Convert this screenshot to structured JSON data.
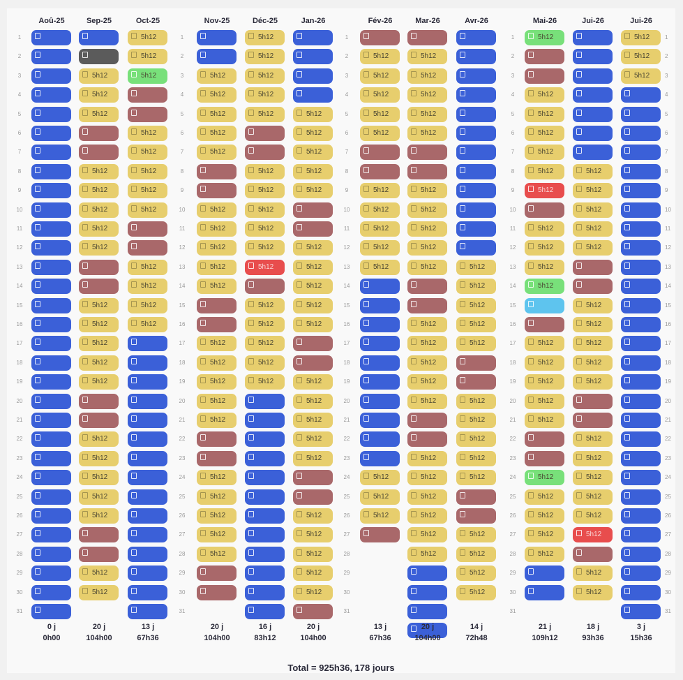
{
  "shift_label": "5h12",
  "total_text": "Total = 925h36, 178 jours",
  "colors": {
    "shift": "#e7ce6d",
    "blue": "#3b60d8",
    "brown": "#a9686a",
    "green": "#78e07a",
    "red": "#e84d4d",
    "dark": "#5b5b5b",
    "cyan": "#5ec4ee"
  },
  "months": [
    {
      "label": "Aoû-25",
      "days": "0 j",
      "hours": "0h00",
      "cells": "bbbbbbbbbbbbbbbbbbbbbbbbbbbbbbb"
    },
    {
      "label": "Sep-25",
      "days": "20 j",
      "hours": "104h00",
      "cells": "bdyyyrryyyyyrryyyyyrryyyyyrryy"
    },
    {
      "label": "Oct-25",
      "days": "13 j",
      "hours": "67h36",
      "cells": "yygrryyyyyrryyyybbbbbbbbbbbbbbb"
    },
    {
      "label": "Nov-25",
      "days": "20 j",
      "hours": "104h00",
      "cells": "bbyyyyyrryyyyyrryyyyyrryyyyyrr"
    },
    {
      "label": "Déc-25",
      "days": "16 j",
      "hours": "83h12",
      "cells": "yyyyyrryyyyyRryyyyybbbbbbbbbbbb"
    },
    {
      "label": "Jan-26",
      "days": "20 j",
      "hours": "104h00",
      "cells": "bbbbyyyyyrryyyyyrryyyyyrryyyyyr"
    },
    {
      "label": "Fév-26",
      "days": "13 j",
      "hours": "67h36",
      "cells": "ryyyyyrryyyyybbbbbbbbbbyyyr"
    },
    {
      "label": "Mar-26",
      "days": "20 j",
      "hours": "104h00",
      "cells": "ryyyyyrryyyyyrryyyyyrryyyyyybbbb"
    },
    {
      "label": "Avr-26",
      "days": "14 j",
      "hours": "72h48",
      "cells": "bbbbbbbbbbbbyyyyyrryyyyyrryyyy"
    },
    {
      "label": "Mai-26",
      "days": "21 j",
      "hours": "109h12",
      "cells": "grryyyyyRryyygcryyyyyrrgyyyybb"
    },
    {
      "label": "Jui-26",
      "days": "18 j",
      "hours": "93h36",
      "cells": "bbbbbbbyyyyyrryyyyyrryyyyyRryy"
    },
    {
      "label": "Jui-26",
      "days": "3 j",
      "hours": "15h36",
      "cells": "yyybbbbbbbbbbbbbbbbbbbbbbbbbbbb"
    }
  ]
}
